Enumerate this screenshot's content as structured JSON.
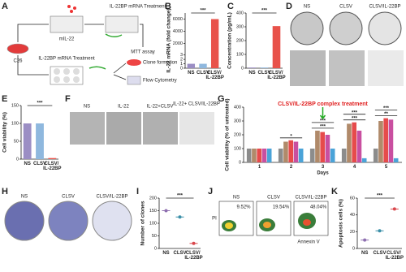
{
  "figure": {
    "panels": [
      "A",
      "B",
      "C",
      "D",
      "E",
      "F",
      "G",
      "H",
      "I",
      "J",
      "K"
    ],
    "A": {
      "cell_line": "C26",
      "plasmid": "mIL-22",
      "top_treatment": "IL-22BP mRNA Treatment",
      "assay": "MTT assay",
      "bottom_treatment": "IL-22BP mRNA Treatment",
      "clone": "Clone formation",
      "flow": "Flow Cytometry"
    },
    "D": [
      "NS",
      "CLSV",
      "CLSV/IL-22BP"
    ],
    "F": [
      "NS",
      "IL-22",
      "IL-22+CLSV",
      "IL-22+ CLSV/IL-22BP"
    ],
    "H": [
      "NS",
      "CLSV",
      "CLSV/IL-22BP"
    ],
    "J": {
      "y_label": "PI",
      "x_label": "Annexin V",
      "titles": [
        "NS",
        "CLSV",
        "CLSV/IL-22BP"
      ],
      "percents": [
        "9.52%",
        "19.54%",
        "48.04%"
      ]
    }
  },
  "chart_data": [
    {
      "type": "bar",
      "y_label": "IL-22 mRNA (fold change)",
      "categories": [
        "NS",
        "CLSV",
        "CLSV/ IL-22BP"
      ],
      "values": [
        1,
        1,
        6000
      ],
      "colors": [
        "#9b8ec4",
        "#8fb8de",
        "#e8524a"
      ],
      "ylim": [
        0,
        7000
      ],
      "ybreak": [
        3.5,
        1000
      ],
      "yticks": [
        0,
        1,
        2,
        3,
        2000,
        4000,
        6000
      ],
      "annotations": [
        {
          "text": "***"
        }
      ]
    },
    {
      "type": "bar",
      "y_label": "Concentration (pg/mL)",
      "categories": [
        "NS",
        "CLSV",
        "CLSV/ IL-22BP"
      ],
      "values": [
        5,
        5,
        305
      ],
      "colors": [
        "#9b8ec4",
        "#8fb8de",
        "#e8524a"
      ],
      "ylim": [
        0,
        400
      ],
      "yticks": [
        0,
        100,
        200,
        300,
        400
      ],
      "annotations": [
        {
          "text": "***"
        }
      ]
    },
    {
      "type": "bar",
      "y_label": "Cell viability (%)",
      "categories": [
        "NS",
        "CLSV",
        "CLSV/ IL-22BP"
      ],
      "values": [
        100,
        100,
        3
      ],
      "colors": [
        "#9b8ec4",
        "#8fb8de",
        "#e8524a"
      ],
      "ylim": [
        0,
        150
      ],
      "yticks": [
        0,
        50,
        100,
        150
      ],
      "annotations": [
        {
          "text": "***"
        }
      ]
    },
    {
      "type": "grouped",
      "y_label": "Cell viability (% of untreated)",
      "x_label": "Days",
      "note": "CLSV/IL-22BP complex treatment",
      "categories": [
        "1",
        "2",
        "3",
        "4",
        "5"
      ],
      "series": [
        {
          "color": "#8c8c8c",
          "values": [
            100,
            100,
            100,
            100,
            100
          ]
        },
        {
          "color": "#b08a6a",
          "values": [
            100,
            150,
            230,
            280,
            300
          ]
        },
        {
          "color": "#e64b4b",
          "values": [
            100,
            160,
            220,
            290,
            320
          ]
        },
        {
          "color": "#c94fa0",
          "values": [
            100,
            150,
            200,
            230,
            310
          ]
        },
        {
          "color": "#4aa3d8",
          "values": [
            100,
            100,
            100,
            30,
            30
          ]
        }
      ],
      "ylim": [
        0,
        400
      ],
      "yticks": [
        0,
        100,
        200,
        300,
        400
      ],
      "annotations": [
        {
          "text": "*",
          "category": "2"
        },
        {
          "text": "***",
          "category": "3"
        },
        {
          "text": "***",
          "category": "3"
        },
        {
          "text": "***",
          "category": "4"
        },
        {
          "text": "***",
          "category": "4"
        },
        {
          "text": "**",
          "category": "5"
        },
        {
          "text": "***",
          "category": "5"
        }
      ]
    },
    {
      "type": "dot",
      "y_label": "Number of clones",
      "categories": [
        "NS",
        "CLSV",
        "CLSV/ IL-22BP"
      ],
      "values": [
        150,
        125,
        20
      ],
      "colors": [
        "#8e6fb0",
        "#3a8fa8",
        "#d9474c"
      ],
      "ylim": [
        0,
        200
      ],
      "yticks": [
        0,
        50,
        100,
        150,
        200
      ],
      "annotations": [
        {
          "text": "***"
        }
      ]
    },
    {
      "type": "dot",
      "y_label": "Apoptosis cells (%)",
      "categories": [
        "NS",
        "CLSV",
        "CLSV/ IL-22BP"
      ],
      "values": [
        10,
        21,
        47
      ],
      "colors": [
        "#8e6fb0",
        "#3a8fa8",
        "#d9474c"
      ],
      "ylim": [
        0,
        60
      ],
      "yticks": [
        0,
        20,
        40,
        60
      ],
      "annotations": [
        {
          "text": "***"
        }
      ]
    }
  ]
}
